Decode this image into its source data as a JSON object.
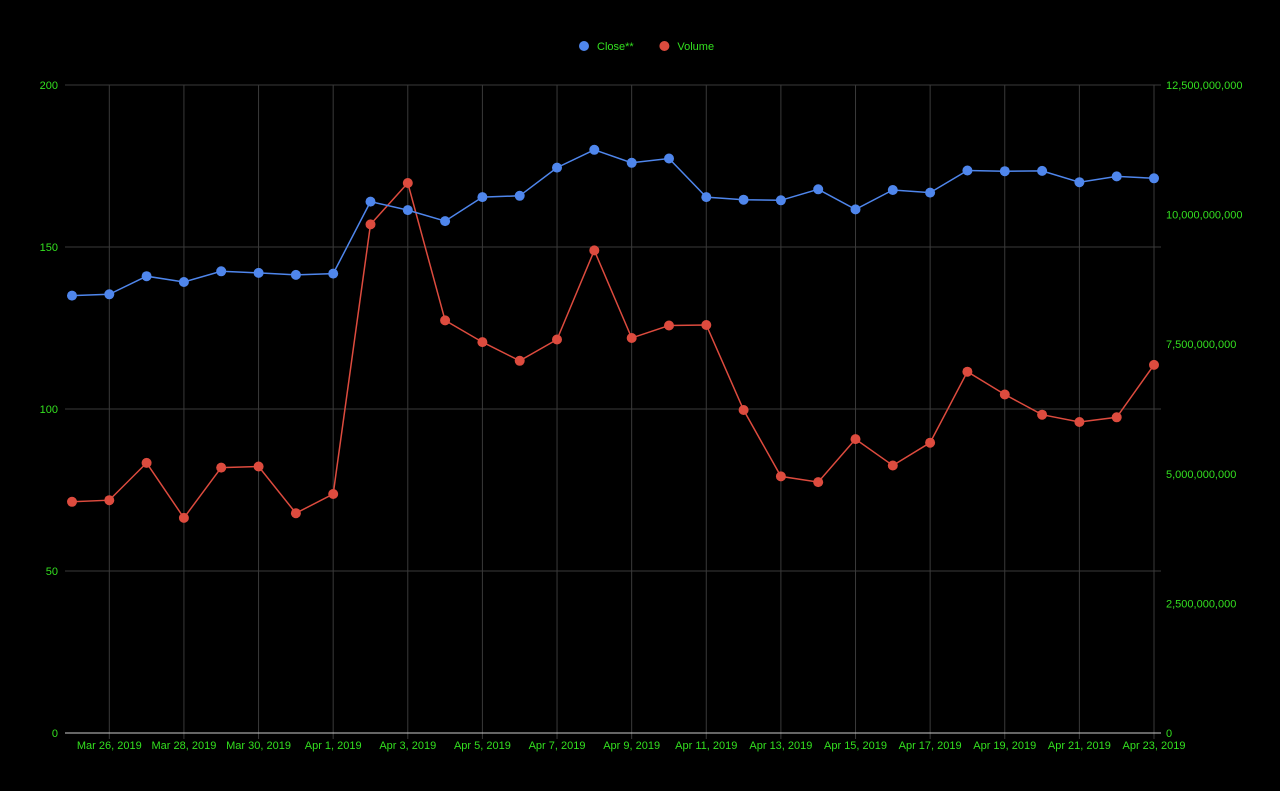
{
  "colors": {
    "background": "#000000",
    "grid": "#3a3a3a",
    "axis_line": "#cccccc",
    "tick_text": "#33e01f",
    "legend_text": "#33e01f"
  },
  "chart_data": {
    "type": "line",
    "title": "",
    "grid": true,
    "legend_position": "top-center",
    "x": [
      "2019-03-25",
      "2019-03-26",
      "2019-03-27",
      "2019-03-28",
      "2019-03-29",
      "2019-03-30",
      "2019-03-31",
      "2019-04-01",
      "2019-04-02",
      "2019-04-03",
      "2019-04-04",
      "2019-04-05",
      "2019-04-06",
      "2019-04-07",
      "2019-04-08",
      "2019-04-09",
      "2019-04-10",
      "2019-04-11",
      "2019-04-12",
      "2019-04-13",
      "2019-04-14",
      "2019-04-15",
      "2019-04-16",
      "2019-04-17",
      "2019-04-18",
      "2019-04-19",
      "2019-04-20",
      "2019-04-21",
      "2019-04-22",
      "2019-04-23"
    ],
    "x_tick_labels": [
      "Mar 26, 2019",
      "Mar 28, 2019",
      "Mar 30, 2019",
      "Apr 1, 2019",
      "Apr 3, 2019",
      "Apr 5, 2019",
      "Apr 7, 2019",
      "Apr 9, 2019",
      "Apr 11, 2019",
      "Apr 13, 2019",
      "Apr 15, 2019",
      "Apr 17, 2019",
      "Apr 19, 2019",
      "Apr 21, 2019",
      "Apr 23, 2019"
    ],
    "x_tick_dates": [
      "2019-03-26",
      "2019-03-28",
      "2019-03-30",
      "2019-04-01",
      "2019-04-03",
      "2019-04-05",
      "2019-04-07",
      "2019-04-09",
      "2019-04-11",
      "2019-04-13",
      "2019-04-15",
      "2019-04-17",
      "2019-04-19",
      "2019-04-21",
      "2019-04-23"
    ],
    "y_left": {
      "ylim": [
        0,
        200
      ],
      "ticks": [
        0,
        50,
        100,
        150,
        200
      ],
      "tick_labels": [
        "0",
        "50",
        "100",
        "150",
        "200"
      ]
    },
    "y_right": {
      "ylim": [
        0,
        12500000000
      ],
      "ticks": [
        0,
        2500000000,
        5000000000,
        7500000000,
        10000000000,
        12500000000
      ],
      "tick_labels": [
        "0",
        "2,500,000,000",
        "5,000,000,000",
        "7,500,000,000",
        "10,000,000,000",
        "12,500,000,000"
      ]
    },
    "series": [
      {
        "name": "Close**",
        "axis": "left",
        "color": "#4f86ec",
        "values": [
          135.0,
          135.4,
          141.0,
          139.2,
          142.5,
          142.0,
          141.4,
          141.8,
          164.0,
          161.4,
          158.0,
          165.4,
          165.8,
          174.5,
          180.0,
          176.0,
          177.3,
          165.4,
          164.6,
          164.4,
          167.8,
          161.6,
          167.6,
          166.8,
          173.6,
          173.4,
          173.5,
          170.0,
          171.8,
          171.2
        ]
      },
      {
        "name": "Volume",
        "axis": "right",
        "color": "#dd4b3e",
        "values": [
          4460000000,
          4490000000,
          5210000000,
          4150000000,
          5120000000,
          5140000000,
          4240000000,
          4610000000,
          9810000000,
          10610000000,
          7960000000,
          7540000000,
          7180000000,
          7590000000,
          9310000000,
          7620000000,
          7860000000,
          7870000000,
          6230000000,
          4950000000,
          4840000000,
          5670000000,
          5160000000,
          5600000000,
          6970000000,
          6530000000,
          6140000000,
          6000000000,
          6090000000,
          7100000000
        ]
      }
    ]
  }
}
